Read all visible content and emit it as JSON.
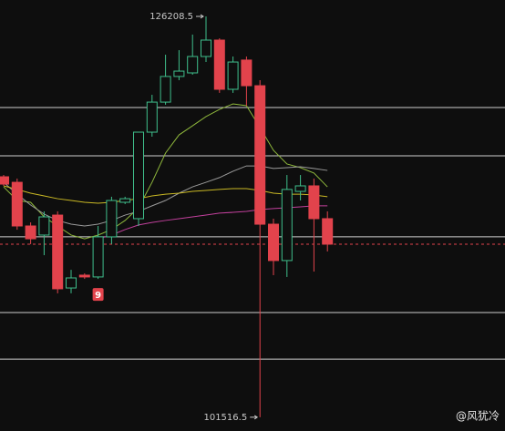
{
  "chart_data": {
    "type": "candlestick",
    "ylim": [
      100670,
      127220
    ],
    "up_color": "#3fbf8c",
    "down_color": "#e2434c",
    "open": [
      116330,
      115990,
      113300,
      112740,
      113970,
      109480,
      110270,
      110160,
      112630,
      114760,
      113750,
      119080,
      120930,
      122510,
      122730,
      123740,
      124750,
      121720,
      123520,
      121940,
      113410,
      111170,
      115430,
      115770,
      113750
    ],
    "high": [
      116440,
      116220,
      113520,
      114200,
      114200,
      110600,
      110380,
      113300,
      115100,
      115100,
      119080,
      121380,
      123850,
      124130,
      125090,
      126208.5,
      124860,
      123740,
      123740,
      122280,
      113750,
      116440,
      116440,
      116220,
      114200
    ],
    "low": [
      115770,
      113070,
      112180,
      111500,
      109150,
      109150,
      110040,
      110040,
      112180,
      114650,
      113300,
      118800,
      120770,
      122280,
      122620,
      123400,
      121500,
      121500,
      120710,
      101516.5,
      110270,
      110160,
      114870,
      110490,
      111730
    ],
    "close": [
      115880,
      113300,
      112510,
      113860,
      109430,
      110100,
      110160,
      112630,
      114870,
      114980,
      119080,
      120930,
      122510,
      122840,
      123740,
      124750,
      121720,
      123400,
      121940,
      113410,
      111170,
      115550,
      115770,
      113750,
      112180
    ],
    "series": [
      {
        "color": "#8fb83c",
        "values": [
          115710,
          114870,
          114760,
          113860,
          113300,
          112740,
          112510,
          112740,
          113080,
          113640,
          114420,
          115990,
          117790,
          118910,
          119470,
          120040,
          120480,
          120820,
          120710,
          119360,
          117960,
          117120,
          116890,
          116560,
          115710
        ]
      },
      {
        "color": "#9a9a9a",
        "values": [
          115990,
          115260,
          114590,
          114030,
          113640,
          113410,
          113300,
          113410,
          113640,
          113970,
          114200,
          114540,
          114870,
          115320,
          115710,
          115990,
          116280,
          116670,
          117000,
          117000,
          116840,
          116890,
          116950,
          116840,
          116720
        ]
      },
      {
        "color": "#c9b824",
        "values": [
          115770,
          115550,
          115320,
          115150,
          114980,
          114870,
          114760,
          114700,
          114760,
          114870,
          114980,
          115150,
          115260,
          115320,
          115430,
          115490,
          115550,
          115600,
          115600,
          115490,
          115320,
          115260,
          115260,
          115210,
          115100
        ]
      },
      {
        "color": "#c2409c",
        "values": [
          null,
          null,
          null,
          null,
          null,
          null,
          null,
          112510,
          112740,
          113080,
          113360,
          113520,
          113640,
          113750,
          113860,
          113970,
          114090,
          114140,
          114200,
          114310,
          114370,
          114420,
          114480,
          114540,
          114540
        ]
      }
    ],
    "levels": [
      120600,
      117620,
      112630,
      107970,
      105100
    ],
    "badge": "9",
    "watermark": "@风犹冷"
  }
}
